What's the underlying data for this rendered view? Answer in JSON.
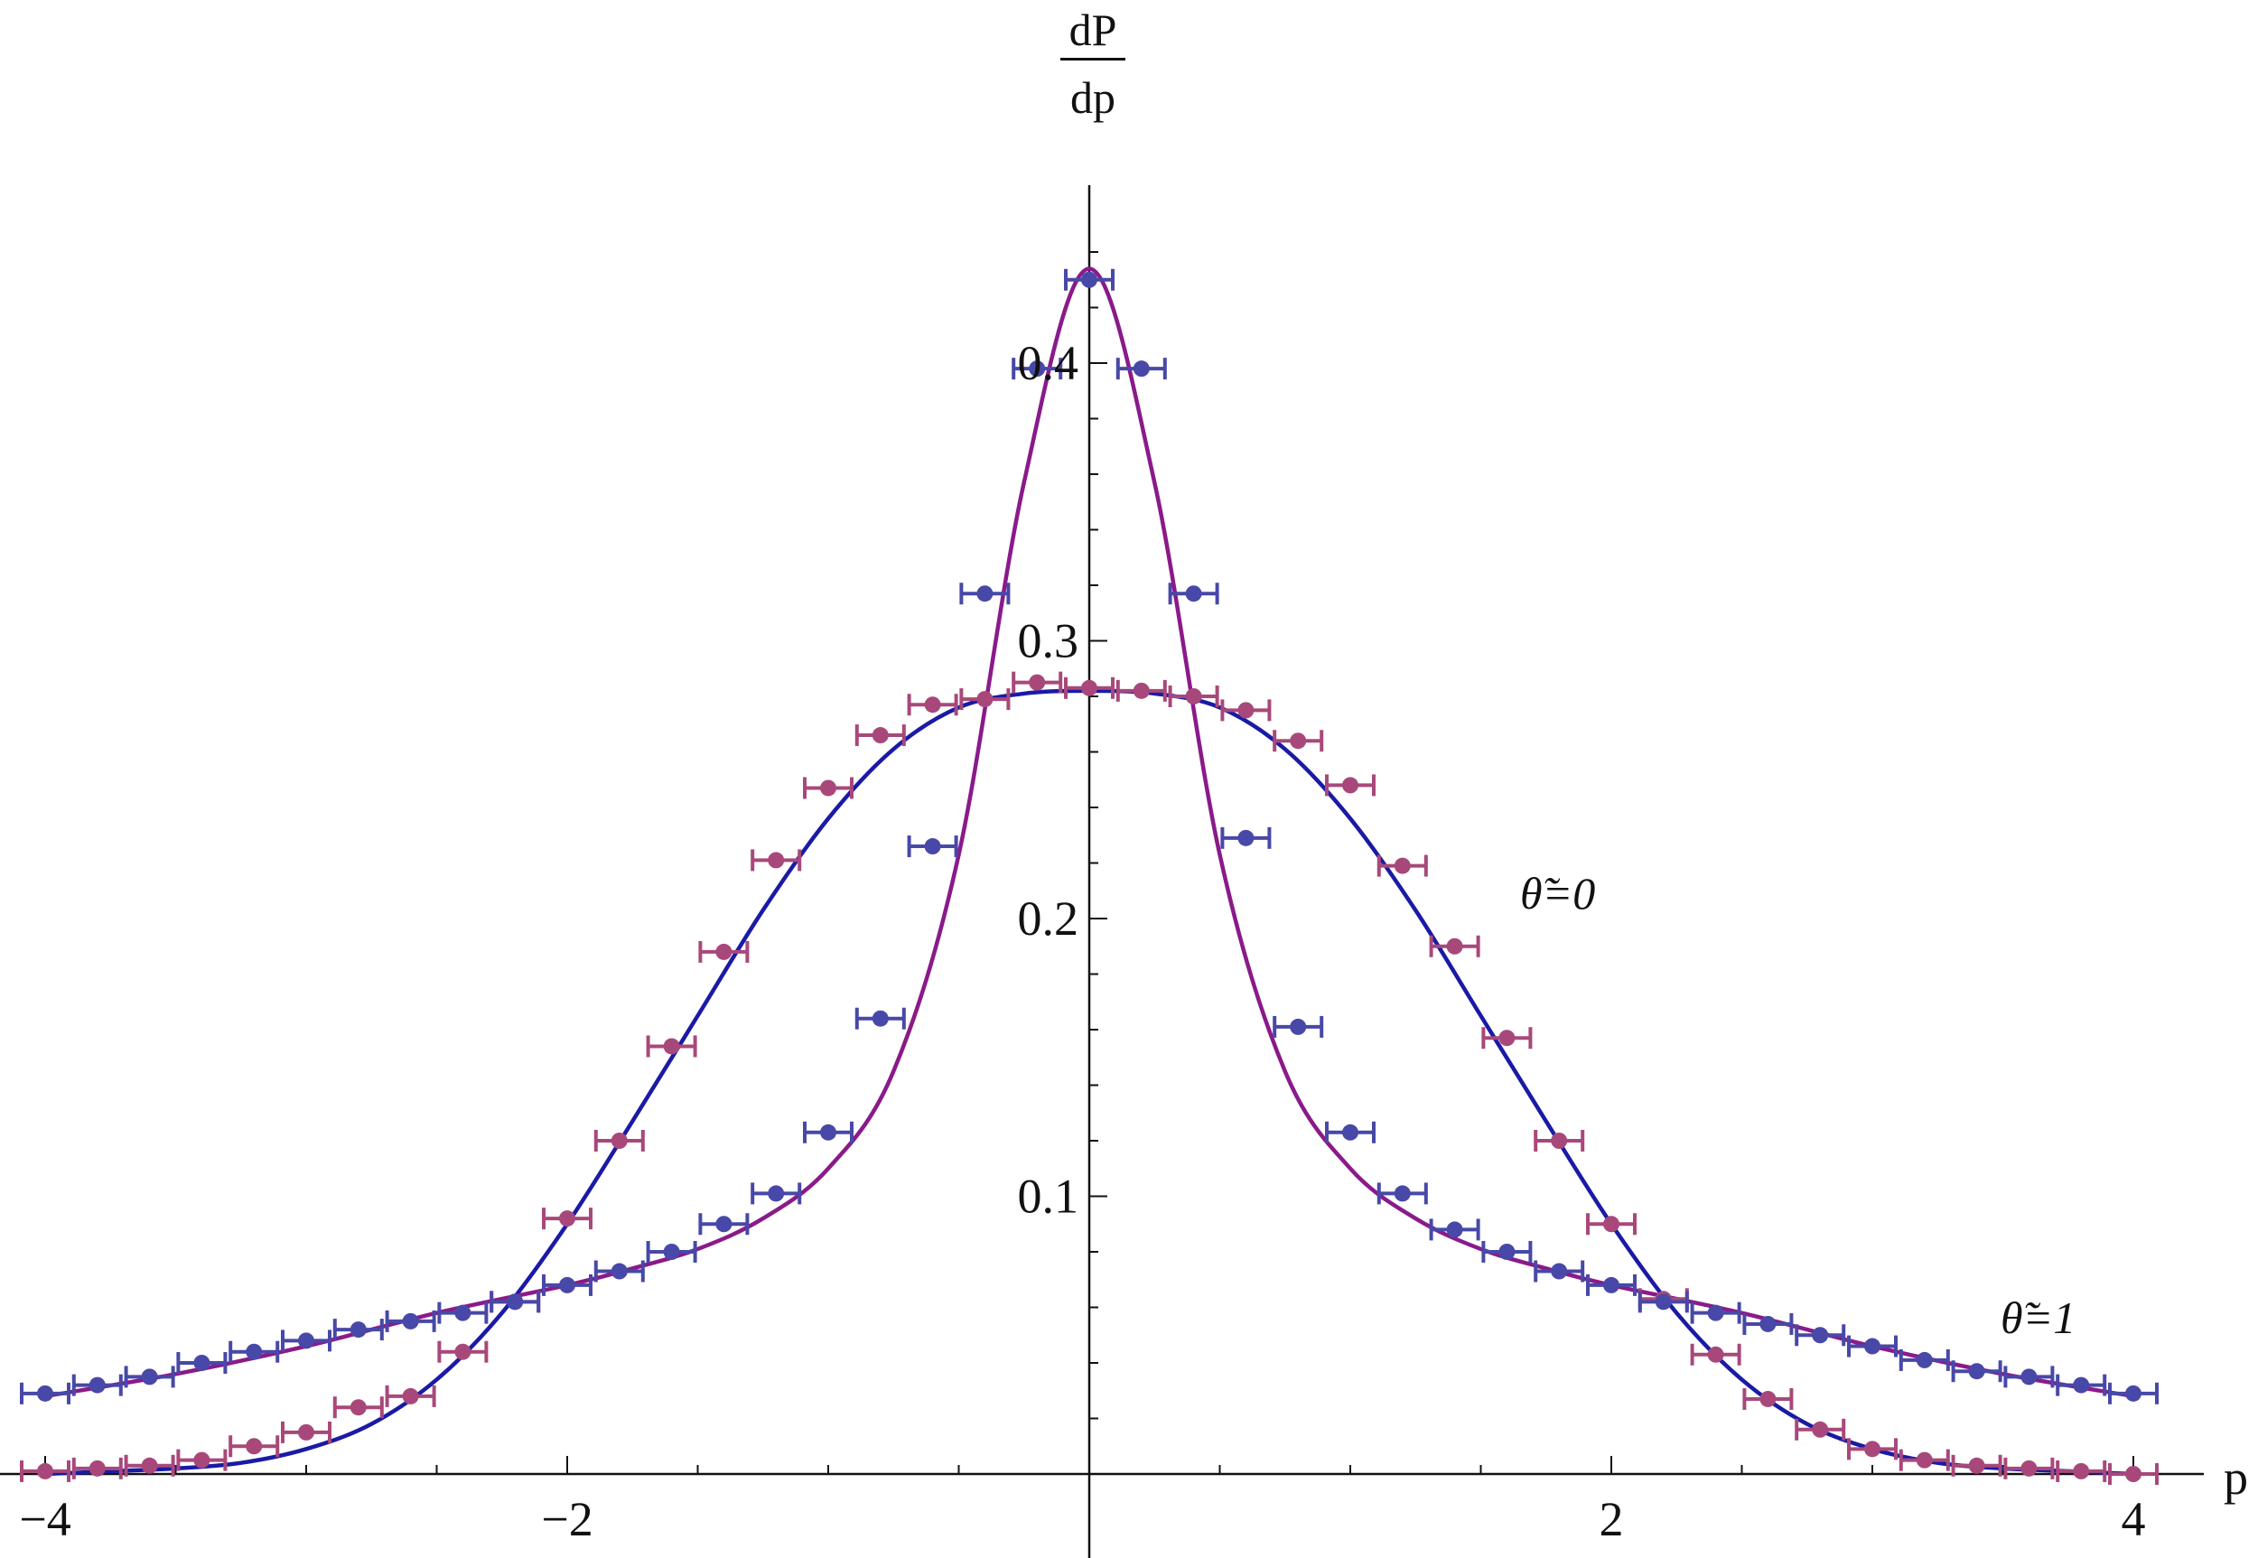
{
  "chart_data": {
    "type": "line",
    "ylabel_num": "dP",
    "ylabel_den": "dp",
    "xlabel": "p",
    "xlim": [
      -4,
      4
    ],
    "ylim": [
      0,
      0.44
    ],
    "xticks": [
      -4,
      -2,
      2,
      4
    ],
    "xtick_labels": [
      "−4",
      "−2",
      "2",
      "4"
    ],
    "yticks": [
      0.1,
      0.2,
      0.3,
      0.4
    ],
    "ytick_labels": [
      "0.1",
      "0.2",
      "0.3",
      "0.4"
    ],
    "annotations": [
      "θ̃=0",
      "θ̃=1"
    ],
    "colors": {
      "wide": "#1a1aa6",
      "peaked": "#8a1a8a",
      "blue_points": "#4848a8",
      "magenta_points": "#a8487a"
    },
    "series": [
      {
        "style": "solid-line",
        "color": "#1a1aa6",
        "x": [
          -4.0,
          -3.75,
          -3.5,
          -3.25,
          -3.0,
          -2.75,
          -2.5,
          -2.25,
          -2.0,
          -1.75,
          -1.5,
          -1.25,
          -1.0,
          -0.75,
          -0.5,
          -0.25,
          0.0,
          0.25,
          0.5,
          0.75,
          1.0,
          1.25,
          1.5,
          1.75,
          2.0,
          2.25,
          2.5,
          2.75,
          3.0,
          3.25,
          3.5,
          3.75,
          4.0
        ],
        "y": [
          0.0,
          0.001,
          0.002,
          0.004,
          0.009,
          0.018,
          0.034,
          0.058,
          0.09,
          0.127,
          0.165,
          0.203,
          0.236,
          0.261,
          0.276,
          0.281,
          0.282,
          0.281,
          0.276,
          0.261,
          0.236,
          0.203,
          0.165,
          0.127,
          0.09,
          0.058,
          0.034,
          0.018,
          0.009,
          0.004,
          0.002,
          0.001,
          0.0
        ]
      },
      {
        "style": "solid-line",
        "color": "#8a1a8a",
        "x": [
          -4.0,
          -3.5,
          -3.0,
          -2.5,
          -2.0,
          -1.75,
          -1.5,
          -1.25,
          -1.0,
          -0.75,
          -0.5,
          -0.25,
          0.0,
          0.25,
          0.5,
          0.75,
          1.0,
          1.25,
          1.5,
          1.75,
          2.0,
          2.5,
          3.0,
          3.5,
          4.0
        ],
        "y": [
          0.028,
          0.036,
          0.046,
          0.058,
          0.068,
          0.074,
          0.081,
          0.092,
          0.11,
          0.145,
          0.223,
          0.357,
          0.434,
          0.357,
          0.223,
          0.145,
          0.11,
          0.092,
          0.081,
          0.074,
          0.068,
          0.058,
          0.046,
          0.036,
          0.028
        ]
      },
      {
        "style": "points-errorbars",
        "color": "#a8487a",
        "x": [
          -4.0,
          -3.8,
          -3.6,
          -3.4,
          -3.2,
          -3.0,
          -2.8,
          -2.6,
          -2.4,
          -2.2,
          -2.0,
          -1.8,
          -1.6,
          -1.4,
          -1.2,
          -1.0,
          -0.8,
          -0.6,
          -0.4,
          -0.2,
          0.0,
          0.2,
          0.4,
          0.6,
          0.8,
          1.0,
          1.2,
          1.4,
          1.6,
          1.8,
          2.0,
          2.2,
          2.4,
          2.6,
          2.8,
          3.0,
          3.2,
          3.4,
          3.6,
          3.8,
          4.0
        ],
        "y": [
          0.001,
          0.002,
          0.003,
          0.005,
          0.01,
          0.015,
          0.024,
          0.028,
          0.044,
          0.062,
          0.092,
          0.12,
          0.154,
          0.188,
          0.221,
          0.247,
          0.266,
          0.277,
          0.279,
          0.285,
          0.283,
          0.282,
          0.28,
          0.275,
          0.264,
          0.248,
          0.219,
          0.19,
          0.157,
          0.12,
          0.09,
          0.063,
          0.043,
          0.027,
          0.016,
          0.009,
          0.005,
          0.003,
          0.002,
          0.001,
          0.0
        ],
        "xerr": 0.09
      },
      {
        "style": "points-errorbars",
        "color": "#4848a8",
        "x": [
          -4.0,
          -3.8,
          -3.6,
          -3.4,
          -3.2,
          -3.0,
          -2.8,
          -2.6,
          -2.4,
          -2.2,
          -2.0,
          -1.8,
          -1.6,
          -1.4,
          -1.2,
          -1.0,
          -0.8,
          -0.6,
          -0.4,
          -0.2,
          0.0,
          0.2,
          0.4,
          0.6,
          0.8,
          1.0,
          1.2,
          1.4,
          1.6,
          1.8,
          2.0,
          2.2,
          2.4,
          2.6,
          2.8,
          3.0,
          3.2,
          3.4,
          3.6,
          3.8,
          4.0
        ],
        "y": [
          0.029,
          0.032,
          0.035,
          0.04,
          0.044,
          0.048,
          0.052,
          0.055,
          0.058,
          0.062,
          0.068,
          0.073,
          0.08,
          0.09,
          0.101,
          0.123,
          0.164,
          0.226,
          0.317,
          0.398,
          0.43,
          0.398,
          0.317,
          0.229,
          0.161,
          0.123,
          0.101,
          0.088,
          0.08,
          0.073,
          0.068,
          0.062,
          0.058,
          0.054,
          0.05,
          0.046,
          0.041,
          0.037,
          0.035,
          0.032,
          0.029
        ],
        "xerr": 0.09
      }
    ]
  }
}
